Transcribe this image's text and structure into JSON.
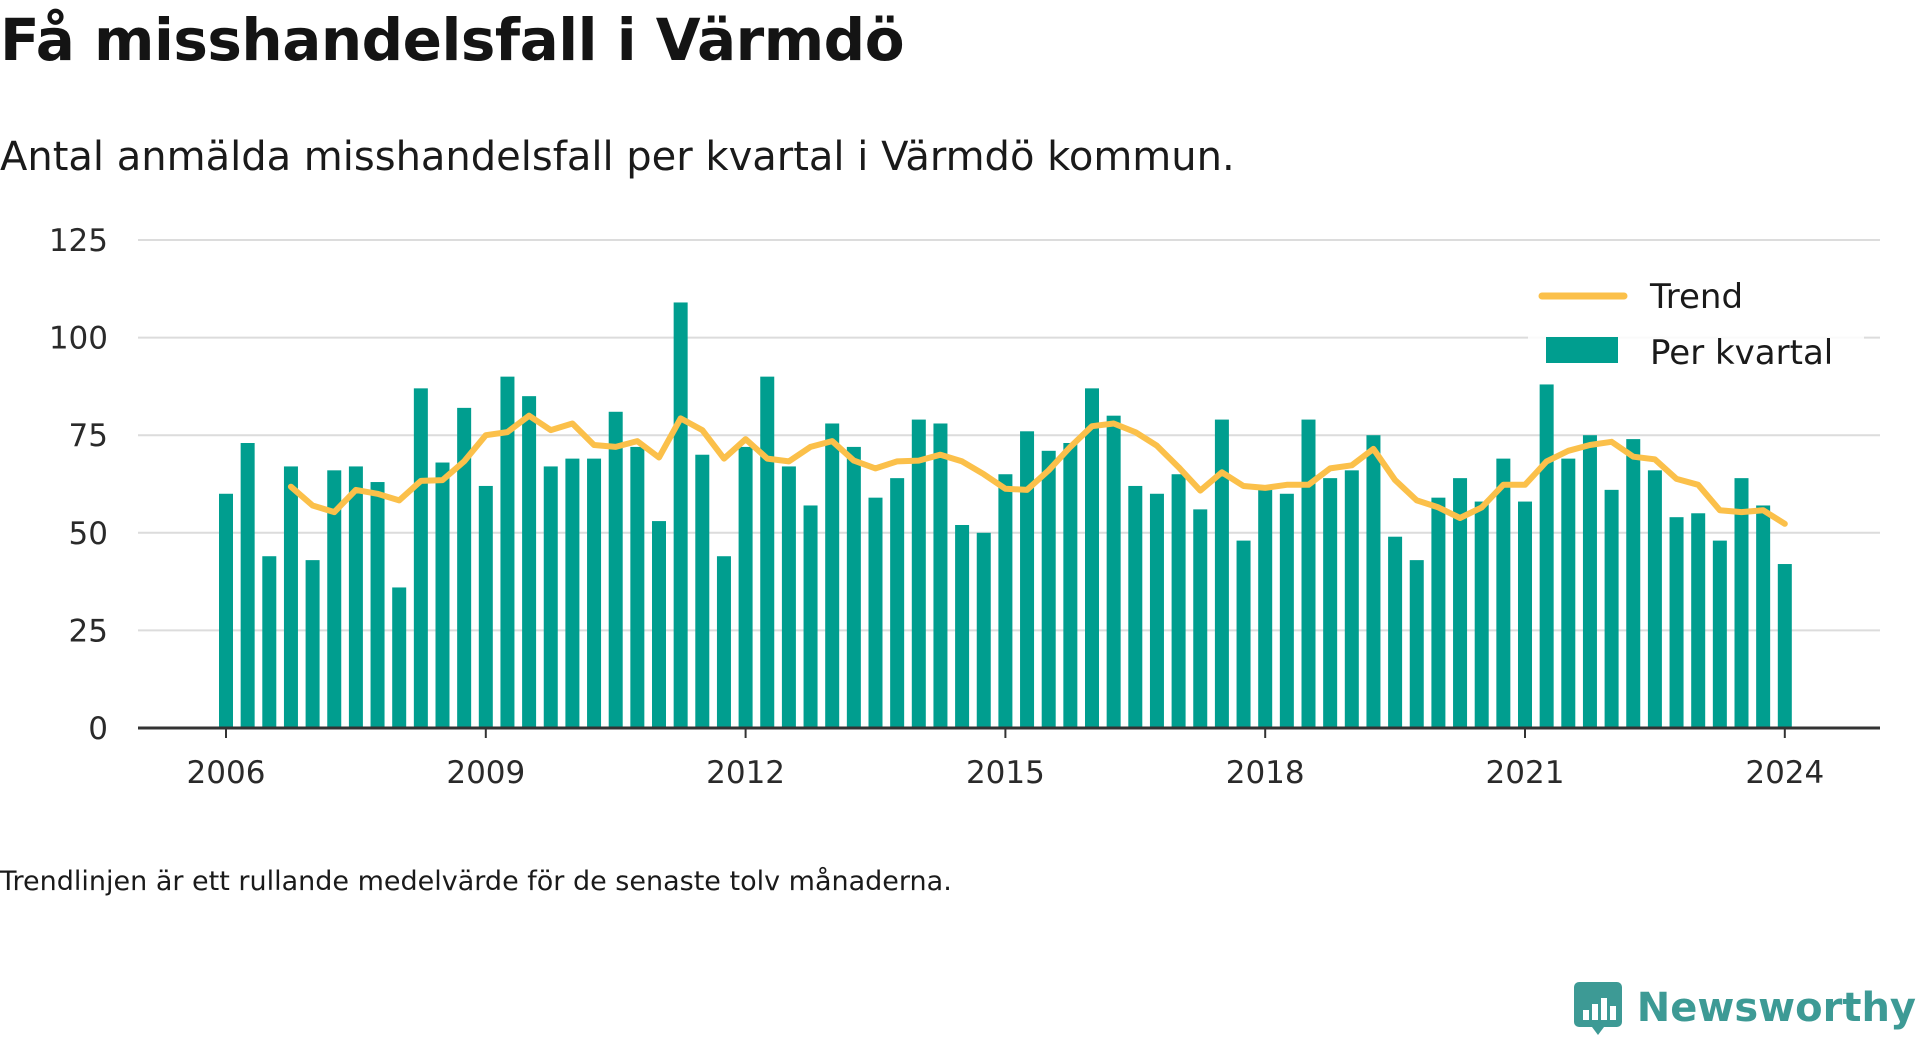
{
  "title": "Få misshandelsfall i Värmdö",
  "subtitle": "Antal anmälda misshandelsfall per kvartal i Värmdö kommun.",
  "footnote": "Trendlinjen är ett rullande medelvärde för de senaste tolv månaderna.",
  "brand": {
    "name": "Newsworthy",
    "logo_icon": "newsworthy-chart-icon"
  },
  "colors": {
    "bars": "#009e8f",
    "trend": "#fbc04a",
    "grid": "#dcdcdc",
    "axis": "#333333"
  },
  "chart_data": {
    "type": "bar",
    "xlabel": "",
    "ylabel": "",
    "ylim": [
      0,
      125
    ],
    "yticks": [
      "0",
      "25",
      "50",
      "75",
      "100",
      "125"
    ],
    "xticks": [
      "2006",
      "2009",
      "2012",
      "2015",
      "2018",
      "2021",
      "2024"
    ],
    "grid": true,
    "legend": {
      "position": "top-right",
      "entries": [
        "Trend",
        "Per kvartal"
      ]
    },
    "x": [
      "2006Q1",
      "2006Q2",
      "2006Q3",
      "2006Q4",
      "2007Q1",
      "2007Q2",
      "2007Q3",
      "2007Q4",
      "2008Q1",
      "2008Q2",
      "2008Q3",
      "2008Q4",
      "2009Q1",
      "2009Q2",
      "2009Q3",
      "2009Q4",
      "2010Q1",
      "2010Q2",
      "2010Q3",
      "2010Q4",
      "2011Q1",
      "2011Q2",
      "2011Q3",
      "2011Q4",
      "2012Q1",
      "2012Q2",
      "2012Q3",
      "2012Q4",
      "2013Q1",
      "2013Q2",
      "2013Q3",
      "2013Q4",
      "2014Q1",
      "2014Q2",
      "2014Q3",
      "2014Q4",
      "2015Q1",
      "2015Q2",
      "2015Q3",
      "2015Q4",
      "2016Q1",
      "2016Q2",
      "2016Q3",
      "2016Q4",
      "2017Q1",
      "2017Q2",
      "2017Q3",
      "2017Q4",
      "2018Q1",
      "2018Q2",
      "2018Q3",
      "2018Q4",
      "2019Q1",
      "2019Q2",
      "2019Q3",
      "2019Q4",
      "2020Q1",
      "2020Q2",
      "2020Q3",
      "2020Q4",
      "2021Q1",
      "2021Q2",
      "2021Q3",
      "2021Q4",
      "2022Q1",
      "2022Q2",
      "2022Q3",
      "2022Q4",
      "2023Q1",
      "2023Q2",
      "2023Q3",
      "2023Q4",
      "2024Q1"
    ],
    "series": [
      {
        "name": "Per kvartal",
        "type": "bar",
        "values": [
          60,
          73,
          44,
          67,
          43,
          66,
          67,
          63,
          36,
          87,
          68,
          82,
          62,
          90,
          85,
          67,
          69,
          69,
          81,
          72,
          53,
          109,
          70,
          44,
          72,
          90,
          67,
          57,
          78,
          72,
          59,
          64,
          79,
          78,
          52,
          50,
          65,
          76,
          71,
          73,
          87,
          80,
          62,
          60,
          65,
          56,
          79,
          48,
          62,
          60,
          79,
          64,
          66,
          75,
          49,
          43,
          59,
          64,
          58,
          69,
          58,
          88,
          69,
          75,
          61,
          74,
          66,
          54,
          55,
          48,
          64,
          57,
          42
        ]
      },
      {
        "name": "Trend",
        "type": "line",
        "values": [
          null,
          null,
          null,
          61.8,
          57.0,
          55.3,
          61.0,
          60.0,
          58.3,
          63.3,
          63.5,
          68.3,
          75.0,
          75.8,
          80.0,
          76.3,
          78.0,
          72.5,
          72.0,
          73.5,
          69.3,
          79.3,
          76.3,
          69.0,
          74.0,
          69.0,
          68.3,
          72.0,
          73.5,
          68.5,
          66.5,
          68.3,
          68.5,
          70.0,
          68.3,
          65.0,
          61.3,
          61.0,
          66.0,
          72.0,
          77.3,
          78.0,
          75.8,
          72.3,
          66.8,
          60.8,
          65.5,
          62.0,
          61.5,
          62.3,
          62.3,
          66.5,
          67.3,
          71.5,
          63.5,
          58.3,
          56.5,
          53.8,
          56.5,
          62.3,
          62.3,
          68.3,
          71.0,
          72.5,
          73.3,
          69.5,
          68.8,
          63.8,
          62.3,
          55.8,
          55.3,
          55.8,
          52.3
        ]
      }
    ]
  }
}
